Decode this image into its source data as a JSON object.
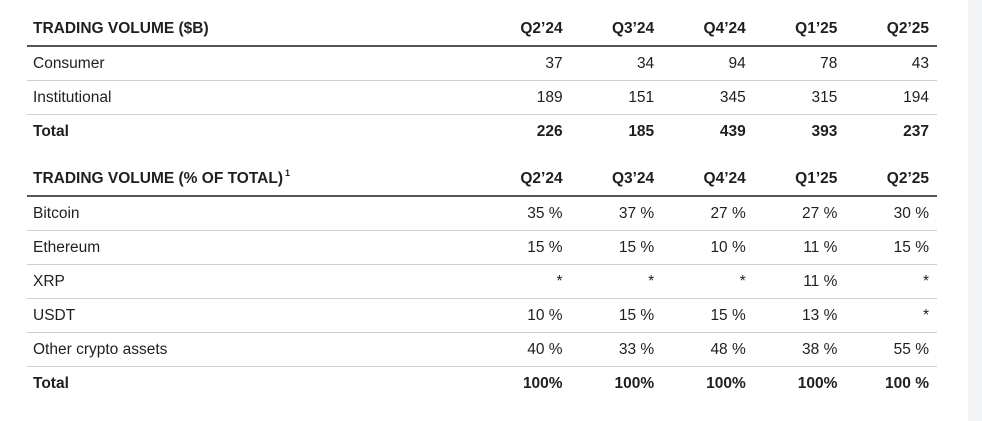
{
  "volume_table": {
    "title": "TRADING VOLUME ($B)",
    "columns": [
      "Q2’24",
      "Q3’24",
      "Q4’24",
      "Q1’25",
      "Q2’25"
    ],
    "rows": [
      {
        "label": "Consumer",
        "values": [
          "37",
          "34",
          "94",
          "78",
          "43"
        ]
      },
      {
        "label": "Institutional",
        "values": [
          "189",
          "151",
          "345",
          "315",
          "194"
        ]
      }
    ],
    "total": {
      "label": "Total",
      "values": [
        "226",
        "185",
        "439",
        "393",
        "237"
      ]
    }
  },
  "share_table": {
    "title": "TRADING VOLUME (% OF TOTAL)",
    "footnote_marker": "1",
    "columns": [
      "Q2’24",
      "Q3’24",
      "Q4’24",
      "Q1’25",
      "Q2’25"
    ],
    "rows": [
      {
        "label": "Bitcoin",
        "values": [
          "35 %",
          "37 %",
          "27 %",
          "27 %",
          "30 %"
        ]
      },
      {
        "label": "Ethereum",
        "values": [
          "15 %",
          "15 %",
          "10 %",
          "11 %",
          "15 %"
        ]
      },
      {
        "label": "XRP",
        "values": [
          "*",
          "*",
          "*",
          "11 %",
          "*"
        ]
      },
      {
        "label": "USDT",
        "values": [
          "10 %",
          "15 %",
          "15 %",
          "13 %",
          "*"
        ]
      },
      {
        "label": "Other crypto assets",
        "values": [
          "40 %",
          "33 %",
          "48 %",
          "38 %",
          "55 %"
        ]
      }
    ],
    "total": {
      "label": "Total",
      "values": [
        "100%",
        "100%",
        "100%",
        "100%",
        "100 %"
      ]
    }
  }
}
